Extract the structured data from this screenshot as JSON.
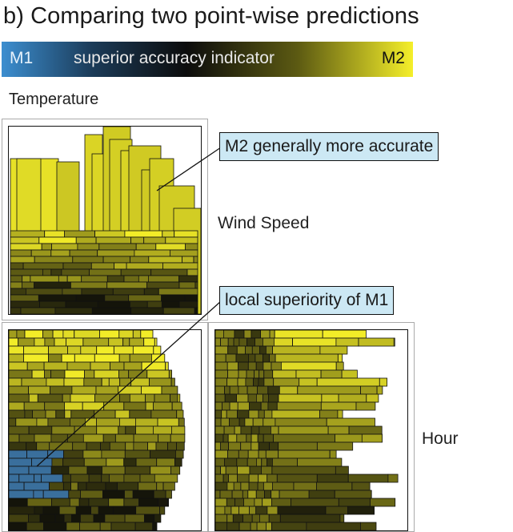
{
  "title": "b) Comparing two point-wise predictions",
  "legend": {
    "left_label": "M1",
    "center_label": "superior accuracy indicator",
    "right_label": "M2",
    "gradient_colors": [
      "#3c8ed0",
      "#1b3b58",
      "#0c0c0c",
      "#5c5a12",
      "#f5ef2a"
    ]
  },
  "axis_labels": {
    "top": "Temperature",
    "middle_right": "Wind Speed",
    "bottom_right": "Hour"
  },
  "callouts": [
    {
      "id": "m2",
      "text": "M2 generally more accurate"
    },
    {
      "id": "m1",
      "text": "local superiority of M1"
    }
  ],
  "colors": {
    "m1_blue": "#3a7fbf",
    "m2_yellow": "#f2ec2a",
    "dark": "#141414",
    "callout_bg": "#cce8f4",
    "panel_border": "#aaaaaa"
  }
}
